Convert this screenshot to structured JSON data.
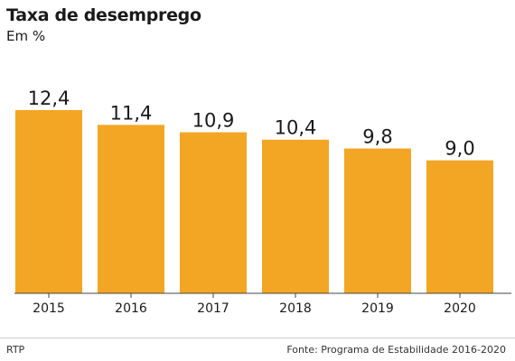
{
  "header": {
    "title": "Taxa de desemprego",
    "subtitle": "Em %"
  },
  "footer": {
    "credit": "RTP",
    "source": "Fonte: Programa de Estabilidade 2016-2020"
  },
  "colors": {
    "bar": "#F3A623",
    "axis": "#444444",
    "text": "#1a1a1a"
  },
  "chart_data": {
    "type": "bar",
    "title": "Taxa de desemprego",
    "subtitle": "Em %",
    "categories": [
      "2015",
      "2016",
      "2017",
      "2018",
      "2019",
      "2020"
    ],
    "values": [
      12.4,
      11.4,
      10.9,
      10.4,
      9.8,
      9.0
    ],
    "value_labels": [
      "12,4",
      "11,4",
      "10,9",
      "10,4",
      "9,8",
      "9,0"
    ],
    "ylim": [
      0,
      12.4
    ],
    "grid": false,
    "legend": "none"
  }
}
